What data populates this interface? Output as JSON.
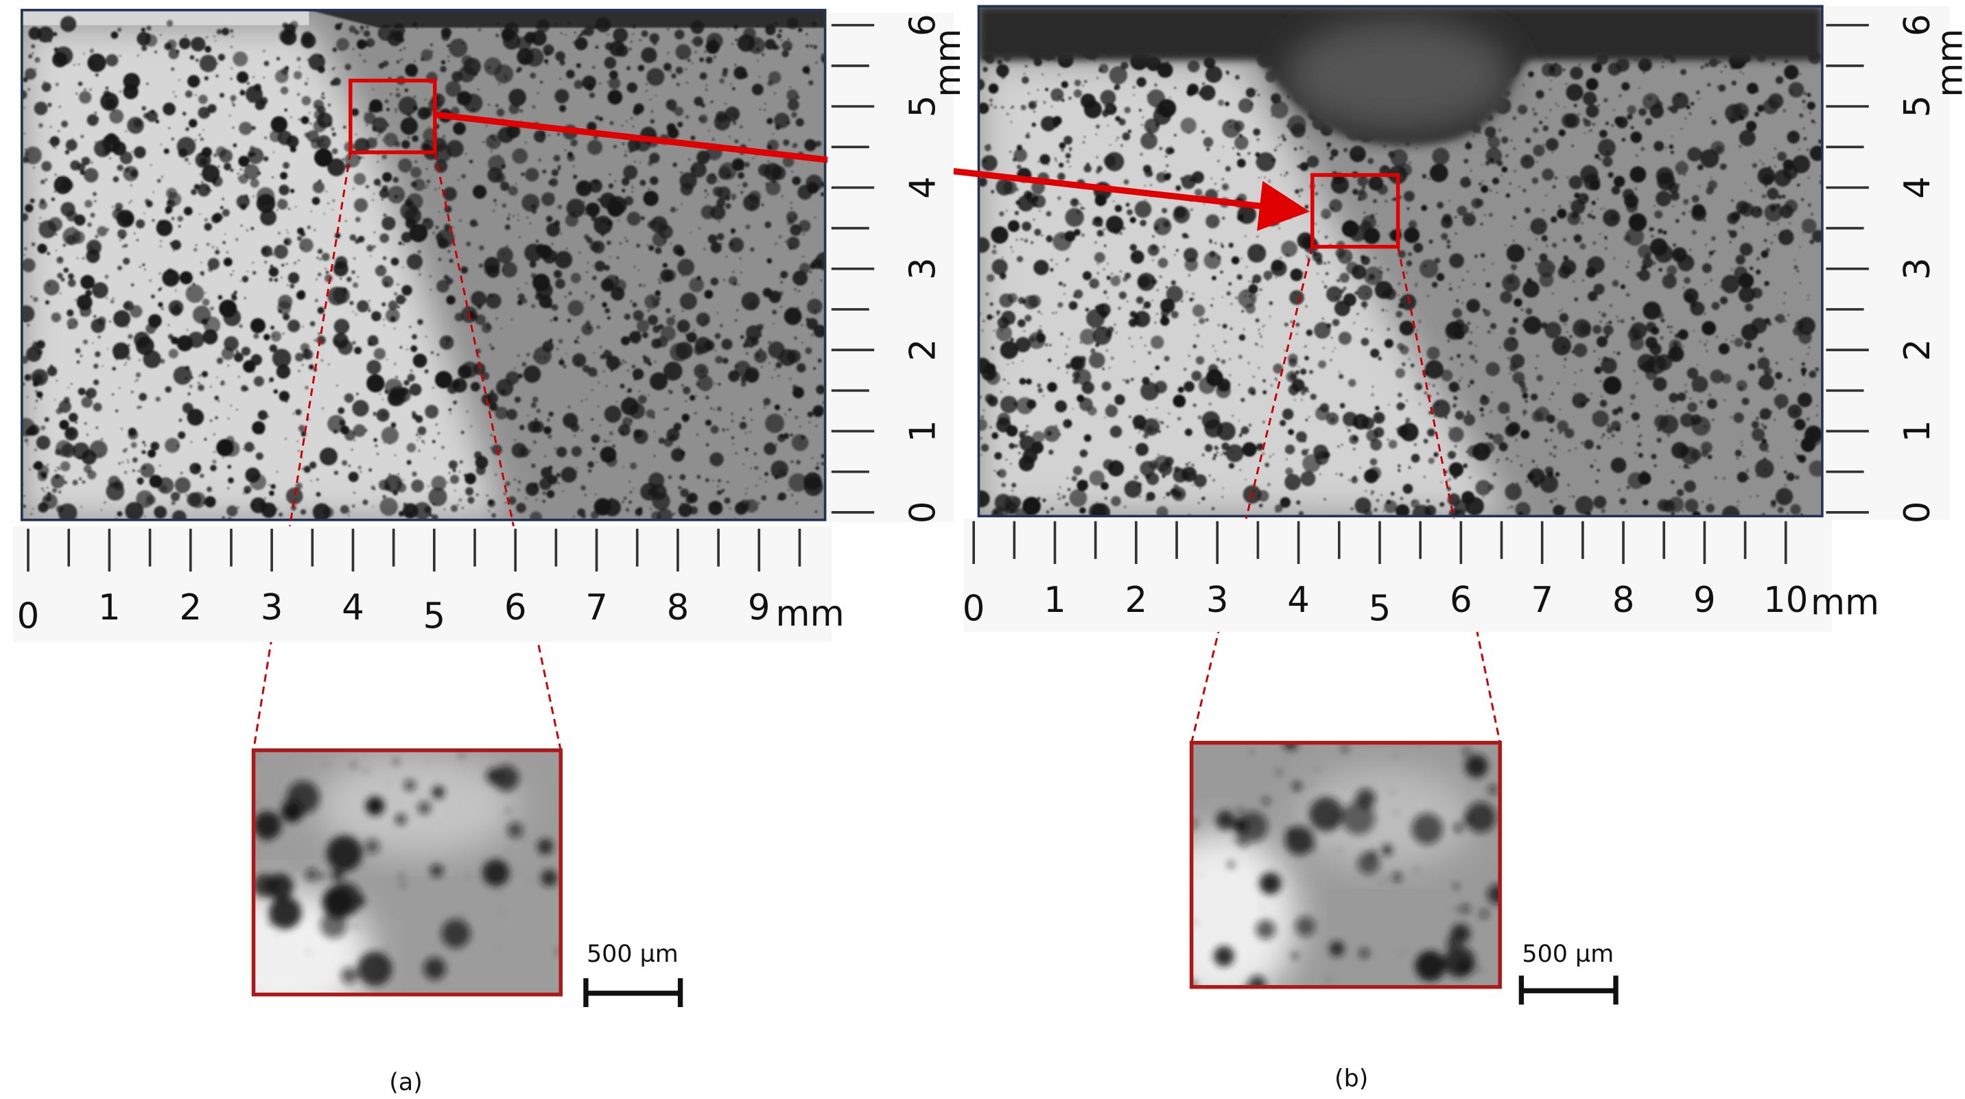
{
  "panels": [
    {
      "x_ruler": {
        "labels": [
          "0",
          "1",
          "2",
          "3",
          "4",
          "5",
          "6",
          "7",
          "8",
          "9"
        ],
        "unit": "mm"
      },
      "y_ruler": {
        "labels": [
          "0",
          "1",
          "2",
          "3",
          "4",
          "5",
          "6"
        ],
        "unit": "mm"
      },
      "scale_bar": "500 µm",
      "caption": "(a)"
    },
    {
      "x_ruler": {
        "labels": [
          "0",
          "1",
          "2",
          "3",
          "4",
          "5",
          "6",
          "7",
          "8",
          "9",
          "10"
        ],
        "unit": "mm"
      },
      "y_ruler": {
        "labels": [
          "0",
          "1",
          "2",
          "3",
          "4",
          "5",
          "6"
        ],
        "unit": "mm"
      },
      "scale_bar": "500 µm",
      "caption": "(b)"
    }
  ]
}
